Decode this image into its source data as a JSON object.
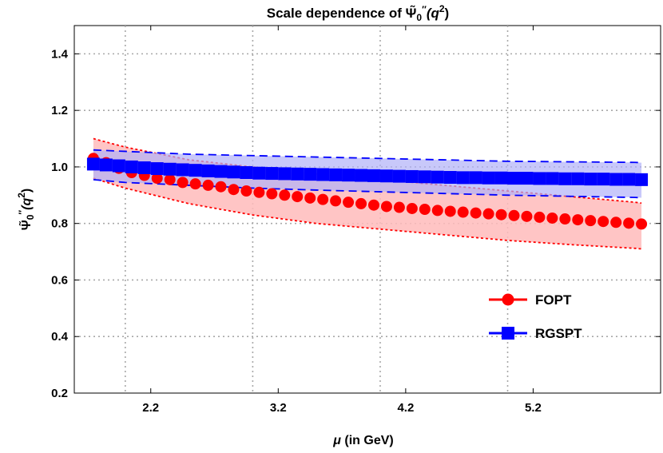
{
  "chart_data": {
    "type": "line",
    "title": "Scale dependence of Ψ̃₀″(q²)",
    "title_parts": {
      "prefix": "Scale dependence of ",
      "psi": "Ψ̃",
      "sub": "0",
      "primes": "″",
      "arg_open": "(q",
      "sup": "2",
      "arg_close": ")"
    },
    "xlabel": "μ (in GeV)",
    "xlabel_parts": {
      "mu": "μ",
      "rest": " (in GeV)"
    },
    "ylabel": "Ψ̃₀″(q²)",
    "xlim": [
      1.6,
      6.2
    ],
    "ylim": [
      0.2,
      1.5
    ],
    "xticks": [
      2.2,
      3.2,
      4.2,
      5.2
    ],
    "xtick_labels": [
      "2.2",
      "3.2",
      "4.2",
      "5.2"
    ],
    "yticks": [
      0.2,
      0.4,
      0.6,
      0.8,
      1.0,
      1.2,
      1.4
    ],
    "ytick_labels": [
      "0.2",
      "0.4",
      "0.6",
      "0.8",
      "1.0",
      "1.2",
      "1.4"
    ],
    "grid": true,
    "grid_x": [
      2.0,
      3.0,
      4.0,
      5.0
    ],
    "grid_y": [
      0.4,
      0.6,
      0.8,
      1.0,
      1.2,
      1.4
    ],
    "legend_position": "right",
    "series": [
      {
        "name": "FOPT",
        "color": "#ff0000",
        "band_fill": "#ffbbbb",
        "marker": "circle",
        "x": [
          1.75,
          1.85,
          1.95,
          2.05,
          2.15,
          2.25,
          2.35,
          2.45,
          2.55,
          2.65,
          2.75,
          2.85,
          2.95,
          3.05,
          3.15,
          3.25,
          3.35,
          3.45,
          3.55,
          3.65,
          3.75,
          3.85,
          3.95,
          4.05,
          4.15,
          4.25,
          4.35,
          4.45,
          4.55,
          4.65,
          4.75,
          4.85,
          4.95,
          5.05,
          5.15,
          5.25,
          5.35,
          5.45,
          5.55,
          5.65,
          5.75,
          5.85,
          5.95,
          6.05
        ],
        "y": [
          1.03,
          1.015,
          0.995,
          0.98,
          0.97,
          0.96,
          0.955,
          0.945,
          0.94,
          0.935,
          0.93,
          0.92,
          0.915,
          0.91,
          0.905,
          0.9,
          0.895,
          0.89,
          0.885,
          0.88,
          0.875,
          0.87,
          0.865,
          0.86,
          0.857,
          0.853,
          0.85,
          0.846,
          0.843,
          0.84,
          0.837,
          0.834,
          0.831,
          0.828,
          0.825,
          0.822,
          0.819,
          0.816,
          0.813,
          0.81,
          0.807,
          0.804,
          0.801,
          0.798
        ],
        "band": {
          "x": [
            1.75,
            2.0,
            2.5,
            3.0,
            3.5,
            4.0,
            4.5,
            5.0,
            5.5,
            6.0,
            6.05
          ],
          "upper": [
            1.1,
            1.07,
            1.025,
            1.0,
            0.975,
            0.955,
            0.935,
            0.915,
            0.895,
            0.875,
            0.872
          ],
          "lower": [
            0.96,
            0.925,
            0.87,
            0.83,
            0.8,
            0.78,
            0.76,
            0.74,
            0.725,
            0.712,
            0.71
          ]
        }
      },
      {
        "name": "RGSPT",
        "color": "#0000ff",
        "band_fill": "#b0b0f8",
        "marker": "square",
        "x": [
          1.75,
          1.85,
          1.95,
          2.05,
          2.15,
          2.25,
          2.35,
          2.45,
          2.55,
          2.65,
          2.75,
          2.85,
          2.95,
          3.05,
          3.15,
          3.25,
          3.35,
          3.45,
          3.55,
          3.65,
          3.75,
          3.85,
          3.95,
          4.05,
          4.15,
          4.25,
          4.35,
          4.45,
          4.55,
          4.65,
          4.75,
          4.85,
          4.95,
          5.05,
          5.15,
          5.25,
          5.35,
          5.45,
          5.55,
          5.65,
          5.75,
          5.85,
          5.95,
          6.05
        ],
        "y": [
          1.01,
          1.007,
          1.004,
          1.0,
          0.997,
          0.994,
          0.992,
          0.99,
          0.988,
          0.986,
          0.984,
          0.982,
          0.98,
          0.978,
          0.977,
          0.976,
          0.975,
          0.974,
          0.973,
          0.972,
          0.971,
          0.97,
          0.969,
          0.968,
          0.967,
          0.966,
          0.965,
          0.964,
          0.963,
          0.962,
          0.962,
          0.961,
          0.961,
          0.96,
          0.96,
          0.959,
          0.959,
          0.958,
          0.958,
          0.957,
          0.957,
          0.956,
          0.956,
          0.955
        ],
        "band": {
          "x": [
            1.75,
            2.0,
            2.5,
            3.0,
            3.5,
            4.0,
            4.5,
            5.0,
            5.5,
            6.0,
            6.05
          ],
          "upper": [
            1.06,
            1.055,
            1.045,
            1.04,
            1.035,
            1.03,
            1.025,
            1.02,
            1.018,
            1.016,
            1.015
          ],
          "lower": [
            0.955,
            0.945,
            0.935,
            0.925,
            0.918,
            0.912,
            0.906,
            0.9,
            0.896,
            0.892,
            0.891
          ]
        }
      }
    ]
  }
}
